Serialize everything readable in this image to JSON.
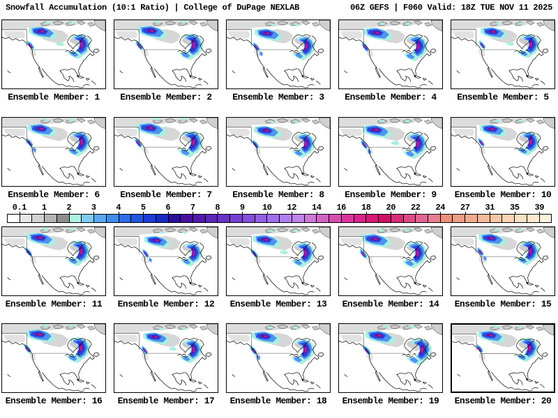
{
  "header": {
    "left": "Snowfall Accumulation (10:1 Ratio) | College of DuPage NEXLAB",
    "right": "06Z GEFS | F060 Valid: 18Z TUE NOV 11 2025"
  },
  "panels": {
    "label_prefix": "Ensemble Member:",
    "labels": [
      "Ensemble Member: 1",
      "Ensemble Member: 2",
      "Ensemble Member: 3",
      "Ensemble Member: 4",
      "Ensemble Member: 5",
      "Ensemble Member: 6",
      "Ensemble Member: 7",
      "Ensemble Member: 8",
      "Ensemble Member: 9",
      "Ensemble Member: 10",
      "Ensemble Member: 11",
      "Ensemble Member: 12",
      "Ensemble Member: 13",
      "Ensemble Member: 14",
      "Ensemble Member: 15",
      "Ensemble Member: 16",
      "Ensemble Member: 17",
      "Ensemble Member: 18",
      "Ensemble Member: 19",
      "Ensemble Member: 20"
    ]
  },
  "colorbar": {
    "ticks": [
      "0.1",
      "1",
      "2",
      "3",
      "4",
      "5",
      "6",
      "7",
      "8",
      "9",
      "10",
      "12",
      "14",
      "16",
      "18",
      "20",
      "22",
      "24",
      "27",
      "31",
      "35",
      "39"
    ],
    "cells": [
      "#ffffff",
      "#e8e8e8",
      "#d2d2d2",
      "#b4b4b4",
      "#8e8e8e",
      "#aef2e2",
      "#7fcdf4",
      "#58a9f2",
      "#3f8def",
      "#2f6ee9",
      "#2455e2",
      "#1c3cd6",
      "#1629c2",
      "#2a0f9a",
      "#46109e",
      "#5219ac",
      "#5e25ba",
      "#6a31c6",
      "#7840d2",
      "#864fdc",
      "#945ee6",
      "#a26eee",
      "#b27ef4",
      "#c184ea",
      "#cb7bd9",
      "#d263c5",
      "#d74cb1",
      "#db359d",
      "#da2489",
      "#d61877",
      "#cf1166",
      "#d62f77",
      "#de4a85",
      "#e56493",
      "#e97d92",
      "#ec8f7a",
      "#ef9d83",
      "#f2ab8e",
      "#f5ba9a",
      "#f8c8a6",
      "#fad5b4",
      "#fce2c4",
      "#fdead0",
      "#fdf3df"
    ]
  },
  "map_colors": {
    "land": "#ffffff",
    "coast": "#000000",
    "border": "#444444",
    "arctic_gray": "#dcdcdc",
    "island_gray": "#c8c8c8",
    "interior_gray": "#d6d6d6",
    "snow_cyan": "#a8efe3",
    "snow_blue": "#4f92f2",
    "snow_deepblue": "#2847dd",
    "snow_purple": "#5a18a8",
    "snow_magenta": "#ce1786"
  }
}
